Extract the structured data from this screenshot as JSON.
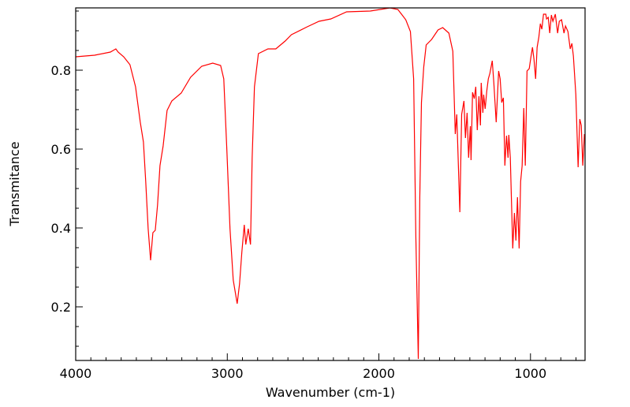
{
  "chart_data": {
    "type": "line",
    "title": "",
    "xlabel": "Wavenumber (cm-1)",
    "ylabel": "Transmitance",
    "xlim": [
      4000,
      640
    ],
    "ylim": [
      0.064,
      0.958
    ],
    "x_reversed": true,
    "grid": false,
    "x_ticks": [
      4000,
      3000,
      2000,
      1000
    ],
    "x_tick_labels": [
      "4000",
      "3000",
      "2000",
      "1000"
    ],
    "x_minor_step": 100,
    "y_ticks": [
      0.2,
      0.4,
      0.6,
      0.8
    ],
    "y_tick_labels": [
      "0.2",
      "0.4",
      "0.6",
      "0.8"
    ],
    "y_minor_step": 0.05,
    "series": [
      {
        "name": "spectrum",
        "color": "#ff0000",
        "x": [
          4000,
          3875,
          3771,
          3735,
          3720,
          3683,
          3642,
          3605,
          3574,
          3553,
          3538,
          3522,
          3506,
          3491,
          3475,
          3460,
          3444,
          3423,
          3397,
          3366,
          3304,
          3242,
          3169,
          3096,
          3044,
          3023,
          3003,
          2982,
          2961,
          2935,
          2919,
          2904,
          2888,
          2878,
          2862,
          2847,
          2836,
          2821,
          2795,
          2732,
          2680,
          2618,
          2577,
          2473,
          2395,
          2317,
          2213,
          2057,
          1927,
          1875,
          1823,
          1792,
          1771,
          1756,
          1740,
          1730,
          1719,
          1704,
          1688,
          1652,
          1610,
          1579,
          1538,
          1512,
          1496,
          1486,
          1466,
          1454,
          1439,
          1429,
          1418,
          1408,
          1397,
          1392,
          1382,
          1371,
          1361,
          1351,
          1340,
          1330,
          1325,
          1314,
          1309,
          1299,
          1288,
          1278,
          1268,
          1252,
          1242,
          1226,
          1210,
          1200,
          1190,
          1179,
          1169,
          1158,
          1148,
          1143,
          1133,
          1117,
          1106,
          1096,
          1086,
          1075,
          1065,
          1055,
          1044,
          1034,
          1023,
          1008,
          997,
          987,
          977,
          966,
          956,
          945,
          935,
          925,
          914,
          899,
          894,
          883,
          873,
          862,
          852,
          836,
          821,
          810,
          795,
          779,
          769,
          753,
          738,
          727,
          717,
          701,
          686,
          675,
          665,
          655,
          644
        ],
        "y": [
          0.834,
          0.838,
          0.846,
          0.854,
          0.846,
          0.834,
          0.814,
          0.758,
          0.668,
          0.618,
          0.518,
          0.398,
          0.318,
          0.388,
          0.394,
          0.458,
          0.558,
          0.608,
          0.698,
          0.722,
          0.742,
          0.782,
          0.81,
          0.818,
          0.812,
          0.778,
          0.598,
          0.398,
          0.268,
          0.208,
          0.258,
          0.338,
          0.408,
          0.358,
          0.398,
          0.358,
          0.578,
          0.758,
          0.842,
          0.854,
          0.854,
          0.874,
          0.89,
          0.91,
          0.924,
          0.93,
          0.948,
          0.95,
          0.958,
          0.954,
          0.928,
          0.898,
          0.778,
          0.378,
          0.068,
          0.478,
          0.718,
          0.808,
          0.864,
          0.878,
          0.902,
          0.908,
          0.894,
          0.848,
          0.638,
          0.688,
          0.44,
          0.688,
          0.722,
          0.628,
          0.692,
          0.578,
          0.658,
          0.572,
          0.744,
          0.728,
          0.758,
          0.648,
          0.734,
          0.66,
          0.768,
          0.692,
          0.738,
          0.702,
          0.748,
          0.778,
          0.792,
          0.824,
          0.768,
          0.668,
          0.798,
          0.778,
          0.718,
          0.73,
          0.558,
          0.634,
          0.578,
          0.636,
          0.578,
          0.348,
          0.438,
          0.368,
          0.478,
          0.348,
          0.518,
          0.558,
          0.704,
          0.558,
          0.798,
          0.804,
          0.834,
          0.858,
          0.828,
          0.778,
          0.858,
          0.884,
          0.918,
          0.904,
          0.942,
          0.942,
          0.93,
          0.934,
          0.894,
          0.94,
          0.924,
          0.942,
          0.894,
          0.924,
          0.928,
          0.894,
          0.912,
          0.898,
          0.854,
          0.868,
          0.836,
          0.738,
          0.554,
          0.676,
          0.66,
          0.558,
          0.638
        ]
      }
    ]
  }
}
